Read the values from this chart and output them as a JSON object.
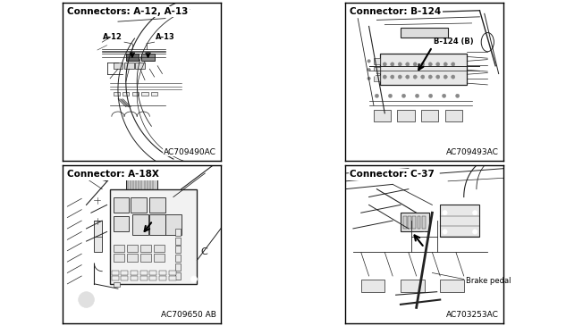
{
  "figure_width": 6.33,
  "figure_height": 3.65,
  "dpi": 100,
  "background_color": "#ffffff",
  "border_color": "#000000",
  "panels": [
    {
      "id": "top_left",
      "title": "Connectors: A-12, A-13",
      "code": "AC709490AC",
      "col": 0,
      "row": 0
    },
    {
      "id": "top_right",
      "title": "Connector: B-124",
      "code": "AC709493AC",
      "col": 1,
      "row": 0
    },
    {
      "id": "bottom_left",
      "title": "Connector: A-18X",
      "code": "AC709650 AB",
      "col": 0,
      "row": 1
    },
    {
      "id": "bottom_right",
      "title": "Connector: C-37",
      "code": "AC703253AC",
      "col": 1,
      "row": 1
    }
  ],
  "title_fontsize": 7.5,
  "code_fontsize": 6.5,
  "annotation_fontsize": 6.5
}
